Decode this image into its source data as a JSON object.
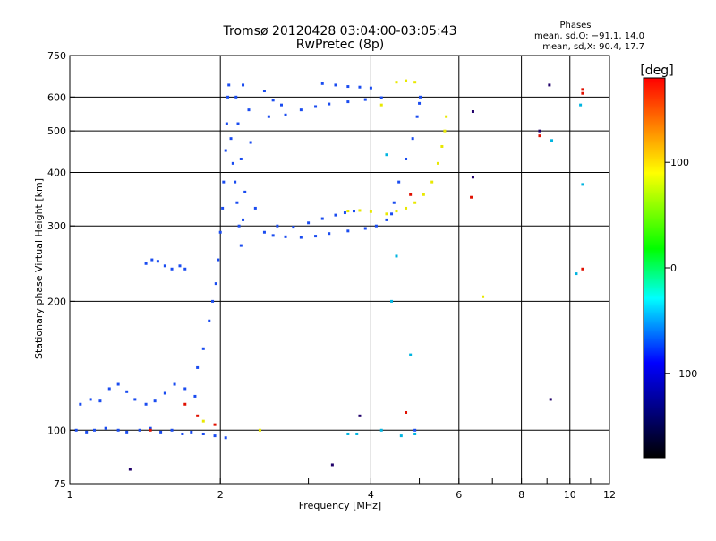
{
  "chart_data": {
    "type": "scatter",
    "title": "Tromsø 20120428 03:04:00-03:05:43",
    "subtitle": "RwPretec (8p)",
    "xlabel": "Frequency [MHz]",
    "ylabel": "Stationary phase Virtual Height [km]",
    "x_scale": "log",
    "y_scale": "log",
    "xlim": [
      1,
      12
    ],
    "ylim": [
      75,
      750
    ],
    "x_ticks": [
      1,
      2,
      4,
      6,
      8,
      10,
      12
    ],
    "x_tick_labels": [
      "1",
      "2",
      "4",
      "6",
      "8",
      "10",
      "12"
    ],
    "x_grid": [
      2,
      4,
      6,
      8,
      10
    ],
    "y_ticks": [
      75,
      100,
      200,
      300,
      400,
      500,
      600,
      750
    ],
    "y_tick_labels": [
      "75",
      "100",
      "200",
      "300",
      "400",
      "500",
      "600",
      "750"
    ],
    "y_grid": [
      100,
      200,
      300,
      400,
      500,
      600
    ],
    "grid": true,
    "stats": {
      "heading": "Phases",
      "line1": "mean, sd,O: −91.1, 14.0",
      "line2": "mean, sd,X:  90.4, 17.7"
    },
    "colorbar": {
      "label": "[deg]",
      "range": [
        -180,
        180
      ],
      "ticks": [
        100,
        0,
        -100
      ],
      "tick_labels": [
        "100",
        "0",
        "−100"
      ],
      "colors": [
        "#ff0000",
        "#ffff00",
        "#00ff00",
        "#00ffff",
        "#0000ff",
        "#000000"
      ]
    },
    "series": [
      {
        "phase_deg": -100,
        "color": "#1a4cf0",
        "points": [
          [
            1.03,
            100
          ],
          [
            1.08,
            99
          ],
          [
            1.12,
            100
          ],
          [
            1.18,
            101
          ],
          [
            1.25,
            100
          ],
          [
            1.3,
            99
          ],
          [
            1.38,
            100
          ],
          [
            1.45,
            101
          ],
          [
            1.52,
            99
          ],
          [
            1.6,
            100
          ],
          [
            1.68,
            98
          ],
          [
            1.75,
            99
          ],
          [
            1.85,
            98
          ],
          [
            1.95,
            97
          ],
          [
            2.05,
            96
          ],
          [
            1.05,
            115
          ],
          [
            1.1,
            118
          ],
          [
            1.15,
            117
          ],
          [
            1.2,
            125
          ],
          [
            1.25,
            128
          ],
          [
            1.3,
            123
          ],
          [
            1.35,
            118
          ],
          [
            1.42,
            115
          ],
          [
            1.48,
            117
          ],
          [
            1.55,
            122
          ],
          [
            1.62,
            128
          ],
          [
            1.7,
            125
          ],
          [
            1.78,
            120
          ],
          [
            1.42,
            245
          ],
          [
            1.46,
            250
          ],
          [
            1.5,
            248
          ],
          [
            1.55,
            242
          ],
          [
            1.6,
            238
          ],
          [
            1.66,
            242
          ],
          [
            1.7,
            238
          ],
          [
            1.8,
            140
          ],
          [
            1.85,
            155
          ],
          [
            1.9,
            180
          ],
          [
            1.93,
            200
          ],
          [
            1.96,
            220
          ],
          [
            1.98,
            250
          ],
          [
            2.0,
            290
          ],
          [
            2.02,
            330
          ],
          [
            2.03,
            380
          ],
          [
            2.05,
            450
          ],
          [
            2.06,
            520
          ],
          [
            2.07,
            600
          ],
          [
            2.08,
            640
          ],
          [
            2.1,
            480
          ],
          [
            2.12,
            420
          ],
          [
            2.14,
            380
          ],
          [
            2.16,
            340
          ],
          [
            2.18,
            300
          ],
          [
            2.2,
            270
          ],
          [
            2.22,
            310
          ],
          [
            2.24,
            360
          ],
          [
            2.2,
            430
          ],
          [
            2.17,
            520
          ],
          [
            2.15,
            600
          ],
          [
            2.22,
            640
          ],
          [
            2.28,
            560
          ],
          [
            2.3,
            470
          ],
          [
            2.35,
            330
          ],
          [
            2.45,
            290
          ],
          [
            2.55,
            285
          ],
          [
            2.7,
            283
          ],
          [
            2.9,
            282
          ],
          [
            3.1,
            284
          ],
          [
            3.3,
            288
          ],
          [
            3.6,
            292
          ],
          [
            3.9,
            296
          ],
          [
            4.1,
            300
          ],
          [
            4.3,
            310
          ],
          [
            4.4,
            320
          ],
          [
            4.45,
            340
          ],
          [
            4.55,
            380
          ],
          [
            4.7,
            430
          ],
          [
            4.85,
            480
          ],
          [
            4.95,
            540
          ],
          [
            5.0,
            580
          ],
          [
            5.02,
            600
          ],
          [
            2.6,
            300
          ],
          [
            2.8,
            298
          ],
          [
            3.0,
            305
          ],
          [
            3.2,
            312
          ],
          [
            3.4,
            318
          ],
          [
            3.55,
            322
          ],
          [
            3.7,
            325
          ],
          [
            2.5,
            540
          ],
          [
            2.7,
            545
          ],
          [
            2.9,
            560
          ],
          [
            3.1,
            570
          ],
          [
            3.3,
            578
          ],
          [
            3.6,
            585
          ],
          [
            3.9,
            592
          ],
          [
            4.2,
            598
          ],
          [
            3.2,
            645
          ],
          [
            3.4,
            640
          ],
          [
            3.6,
            635
          ],
          [
            3.8,
            633
          ],
          [
            4.0,
            630
          ],
          [
            2.45,
            620
          ],
          [
            2.55,
            590
          ],
          [
            2.65,
            575
          ],
          [
            4.9,
            100
          ]
        ]
      },
      {
        "phase_deg": 120,
        "color": "#e8e800",
        "points": [
          [
            3.6,
            325
          ],
          [
            3.8,
            326
          ],
          [
            4.0,
            324
          ],
          [
            4.3,
            320
          ],
          [
            4.5,
            325
          ],
          [
            4.7,
            330
          ],
          [
            4.9,
            340
          ],
          [
            5.1,
            355
          ],
          [
            5.3,
            380
          ],
          [
            5.45,
            420
          ],
          [
            5.55,
            460
          ],
          [
            5.62,
            500
          ],
          [
            5.66,
            540
          ],
          [
            4.5,
            650
          ],
          [
            4.7,
            655
          ],
          [
            4.9,
            650
          ],
          [
            4.2,
            575
          ],
          [
            1.85,
            105
          ],
          [
            2.4,
            100
          ],
          [
            6.7,
            205
          ]
        ]
      },
      {
        "phase_deg": 10,
        "color": "#00b4e0",
        "points": [
          [
            3.6,
            98
          ],
          [
            3.75,
            98
          ],
          [
            4.2,
            100
          ],
          [
            4.6,
            97
          ],
          [
            4.9,
            98
          ],
          [
            4.3,
            440
          ],
          [
            4.4,
            200
          ],
          [
            4.5,
            255
          ],
          [
            4.8,
            150
          ],
          [
            10.5,
            575
          ],
          [
            9.2,
            475
          ],
          [
            10.3,
            232
          ],
          [
            10.6,
            375
          ]
        ]
      },
      {
        "phase_deg": 160,
        "color": "#e01000",
        "points": [
          [
            1.45,
            100
          ],
          [
            1.7,
            115
          ],
          [
            1.8,
            108
          ],
          [
            1.95,
            103
          ],
          [
            4.7,
            110
          ],
          [
            4.8,
            355
          ],
          [
            6.35,
            350
          ],
          [
            8.7,
            487
          ],
          [
            10.6,
            625
          ],
          [
            10.6,
            612
          ],
          [
            10.6,
            238
          ]
        ]
      },
      {
        "phase_deg": -150,
        "color": "#20006a",
        "points": [
          [
            1.32,
            81
          ],
          [
            3.35,
            83
          ],
          [
            3.8,
            108
          ],
          [
            6.4,
            555
          ],
          [
            6.4,
            390
          ],
          [
            8.7,
            500
          ],
          [
            9.15,
            118
          ],
          [
            9.1,
            640
          ]
        ]
      }
    ]
  }
}
